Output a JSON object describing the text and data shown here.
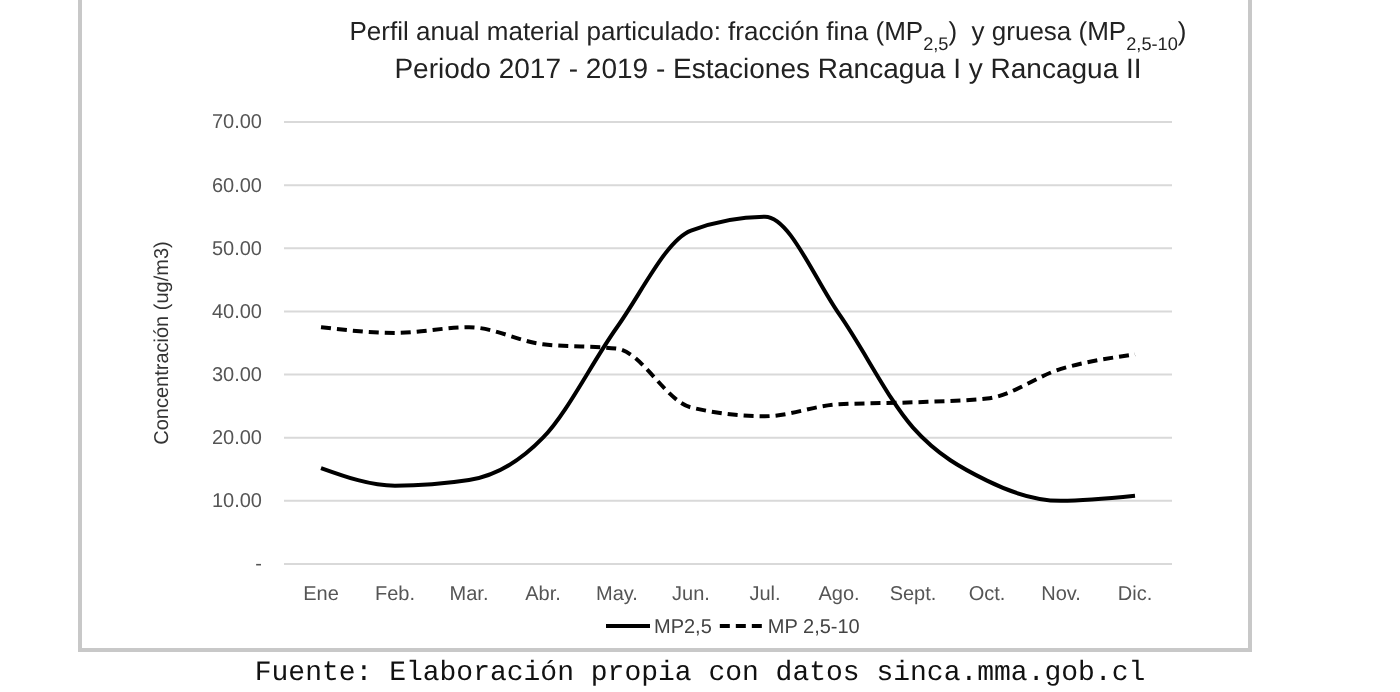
{
  "chart_data": {
    "type": "line",
    "title": "Perfil anual material particulado: fracción fina (MP$_{2,5}$)  y gruesa (MP$_{2,5-10}$)",
    "subtitle": "Periodo 2017 - 2019 -  Estaciones Rancagua I y Rancagua II",
    "ylabel": "Concentración (ug/m3)",
    "categories": [
      "Ene",
      "Feb.",
      "Mar.",
      "Abr.",
      "May.",
      "Jun.",
      "Jul.",
      "Ago.",
      "Sept.",
      "Oct.",
      "Nov.",
      "Dic."
    ],
    "series": [
      {
        "name": "MP2,5",
        "color": "#000000",
        "line_style": "solid",
        "values": [
          15.2,
          12.4,
          13.3,
          20,
          37.5,
          52.8,
          55,
          39.6,
          21.6,
          13.2,
          10,
          10.8
        ]
      },
      {
        "name": "MP 2,5-10",
        "color": "#000000",
        "line_style": "dashed",
        "values": [
          37.5,
          36.6,
          37.5,
          34.8,
          34.1,
          24.8,
          23.4,
          25.3,
          25.6,
          26.2,
          30.9,
          33.2
        ]
      }
    ],
    "ylim": [
      0,
      70
    ],
    "yticks": [
      {
        "value": 0,
        "label": "-"
      },
      {
        "value": 10,
        "label": "10.00"
      },
      {
        "value": 20,
        "label": "20.00"
      },
      {
        "value": 30,
        "label": "30.00"
      },
      {
        "value": 40,
        "label": "40.00"
      },
      {
        "value": 50,
        "label": "50.00"
      },
      {
        "value": 60,
        "label": "60.00"
      },
      {
        "value": 70,
        "label": "70.00"
      }
    ],
    "grid": "y",
    "legend": "bottom",
    "marker": "none",
    "annotations": [
      "Fuente: Elaboración propia con datos sinca.mma.gob.cl"
    ]
  }
}
